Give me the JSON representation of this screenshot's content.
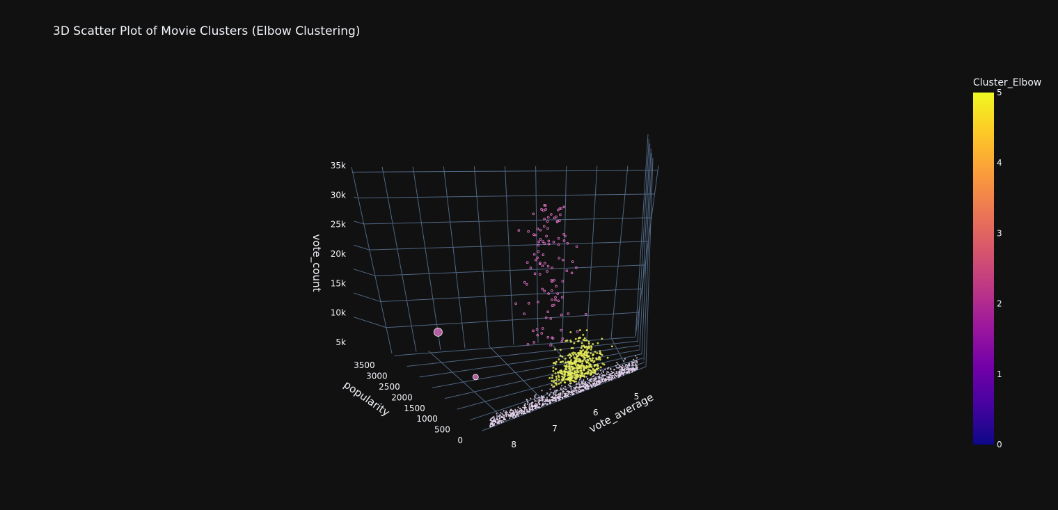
{
  "chart_data": {
    "type": "scatter3d",
    "title": "3D Scatter Plot of Movie Clusters (Elbow Clustering)",
    "axes": {
      "x": {
        "label": "vote_average",
        "ticks": [
          5,
          6,
          7,
          8
        ],
        "range": [
          4.6,
          8.6
        ]
      },
      "y": {
        "label": "popularity",
        "ticks": [
          0,
          500,
          1000,
          1500,
          2000,
          2500,
          3000,
          3500
        ],
        "range": [
          0,
          3600
        ]
      },
      "z": {
        "label": "vote_count",
        "ticks": [
          5000,
          10000,
          15000,
          20000,
          25000,
          30000,
          35000
        ],
        "tick_labels": [
          "5k",
          "10k",
          "15k",
          "20k",
          "25k",
          "30k",
          "35k"
        ],
        "range": [
          0,
          36000
        ]
      }
    },
    "colorbar": {
      "title": "Cluster_Elbow",
      "ticks": [
        0,
        1,
        2,
        3,
        4,
        5
      ],
      "range": [
        0,
        5
      ],
      "colorscale": [
        "#0d0887",
        "#46039f",
        "#7201a8",
        "#9c179e",
        "#bd3786",
        "#d8576b",
        "#ed7953",
        "#fb9f3a",
        "#fdca26",
        "#f0f921"
      ]
    },
    "cluster_colors": {
      "2": "#d86fc0",
      "5": "#e6ec5a",
      "pale": "#e8d6f2"
    },
    "highlight_points": [
      {
        "vote_average": 7.9,
        "popularity": 3400,
        "vote_count": 4200,
        "cluster": 2,
        "size": "large"
      },
      {
        "vote_average": 7.8,
        "popularity": 1900,
        "vote_count": 900,
        "cluster": 2,
        "size": "medium"
      }
    ],
    "grid": true,
    "legend": "colorbar-right"
  }
}
